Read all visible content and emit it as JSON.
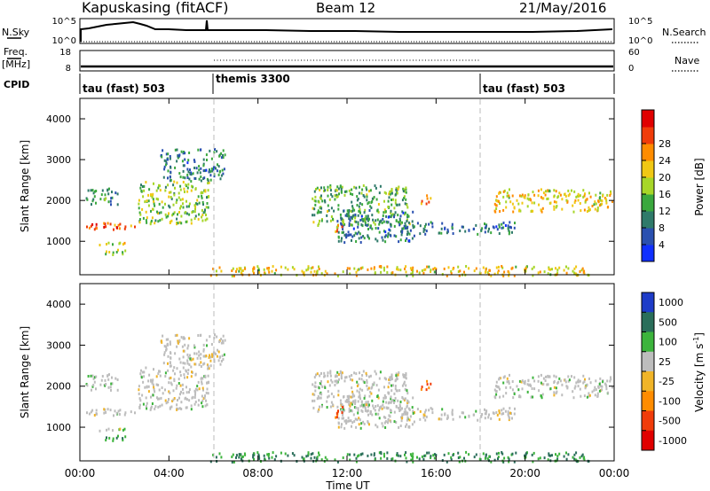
{
  "header": {
    "station": "Kapuskasing (fitACF)",
    "beam": "Beam 12",
    "date": "21/May/2016"
  },
  "noise_panel": {
    "left_label": "N.Sky",
    "right_label": "N.Search",
    "left_ticks": [
      "10^5",
      "10^0"
    ],
    "right_ticks": [
      "10^5",
      "10^0"
    ]
  },
  "freq_panel": {
    "label_line1": "Freq.",
    "label_line2": "[MHz]",
    "left_ticks": [
      "18",
      "8"
    ],
    "right_ticks": [
      "60",
      "0"
    ],
    "right_label": "Nave"
  },
  "cpid_panel": {
    "label": "CPID",
    "modes": [
      {
        "name": "tau (fast) 503",
        "start_hour": 0
      },
      {
        "name": "themis 3300",
        "start_hour": 6
      },
      {
        "name": "tau (fast) 503",
        "start_hour": 18
      }
    ]
  },
  "axes": {
    "xlabel": "Time UT",
    "ylabel": "Slant Range [km]",
    "x_ticks": [
      "00:00",
      "04:00",
      "08:00",
      "12:00",
      "16:00",
      "20:00",
      "00:00"
    ],
    "y_ticks": [
      "1000",
      "2000",
      "3000",
      "4000"
    ]
  },
  "power_colorbar": {
    "label": "Power [dB]",
    "ticks": [
      "4",
      "8",
      "12",
      "16",
      "20",
      "24",
      "28"
    ],
    "colors": [
      "#1030ff",
      "#2a50b0",
      "#2f7a6a",
      "#3aa83e",
      "#a7d628",
      "#f0c814",
      "#ff8c00",
      "#f03c0a",
      "#e00000"
    ]
  },
  "velocity_colorbar": {
    "label": "Velocity [m s",
    "label_sup": "-1",
    "label_end": "]",
    "ticks": [
      "1000",
      "500",
      "100",
      "25",
      "-25",
      "-100",
      "-500",
      "-1000"
    ],
    "colors": [
      "#1e3cc8",
      "#2a6e5a",
      "#3cb43c",
      "#bdbdbd",
      "#f0b428",
      "#ff8c00",
      "#f03c0a",
      "#e00000"
    ]
  },
  "chart_data": {
    "type": "heatmap",
    "title": "Kapuskasing (fitACF)  Beam 12  21/May/2016",
    "xlabel": "Time UT",
    "ylabel": "Slant Range [km]",
    "xlim": [
      0,
      24
    ],
    "ylim": [
      180,
      4500
    ],
    "x_tick_hours": [
      0,
      4,
      8,
      12,
      16,
      20,
      24
    ],
    "y_tick_km": [
      1000,
      2000,
      3000,
      4000
    ],
    "cpid_boundaries_hours": [
      6,
      18
    ],
    "power_range_db": [
      0,
      30
    ],
    "velocity_range_ms": [
      -1000,
      1000
    ],
    "echo_regions": [
      {
        "name": "early near-range band",
        "t": [
          0.0,
          2.5
        ],
        "r": [
          1300,
          1480
        ],
        "power_db": 24,
        "velocity_ms": 0
      },
      {
        "name": "early lower band",
        "t": [
          0.7,
          2.5
        ],
        "r": [
          920,
          1000
        ],
        "power_db": 18,
        "velocity_ms": 0
      },
      {
        "name": "early ground band",
        "t": [
          1.0,
          2.3
        ],
        "r": [
          700,
          840
        ],
        "power_db": 14,
        "velocity_ms": 100
      },
      {
        "name": "scattered early band",
        "t": [
          0.2,
          1.7
        ],
        "r": [
          1920,
          2320
        ],
        "power_db": 10,
        "velocity_ms": 0
      },
      {
        "name": "rising arc",
        "t": [
          2.6,
          5.8
        ],
        "r": [
          1450,
          2500
        ],
        "power_db": 14,
        "velocity_ms": 0
      },
      {
        "name": "upper arc",
        "t": [
          3.5,
          6.5
        ],
        "r": [
          2500,
          3300
        ],
        "power_db": 8,
        "velocity_ms": 0
      },
      {
        "name": "near-range band",
        "t": [
          5.8,
          23.0
        ],
        "r": [
          180,
          420
        ],
        "power_db": 18,
        "velocity_ms": 100
      },
      {
        "name": "evening arc",
        "t": [
          10.4,
          14.8
        ],
        "r": [
          1400,
          2400
        ],
        "power_db": 12,
        "velocity_ms": 0
      },
      {
        "name": "late descending band",
        "t": [
          11.5,
          15.0
        ],
        "r": [
          1000,
          1800
        ],
        "power_db": 8,
        "velocity_ms": 0
      },
      {
        "name": "patch near 11 UT",
        "t": [
          11.4,
          11.9
        ],
        "r": [
          1220,
          1520
        ],
        "power_db": 20,
        "velocity_ms": -500
      },
      {
        "name": "patch near 15.5 UT",
        "t": [
          15.3,
          15.8
        ],
        "r": [
          1900,
          2150
        ],
        "power_db": 22,
        "velocity_ms": -500
      },
      {
        "name": "night band",
        "t": [
          14.5,
          19.5
        ],
        "r": [
          1200,
          1500
        ],
        "power_db": 8,
        "velocity_ms": 0
      },
      {
        "name": "late rising arc",
        "t": [
          18.5,
          24.0
        ],
        "r": [
          1750,
          2300
        ],
        "power_db": 18,
        "velocity_ms": 0
      }
    ]
  }
}
